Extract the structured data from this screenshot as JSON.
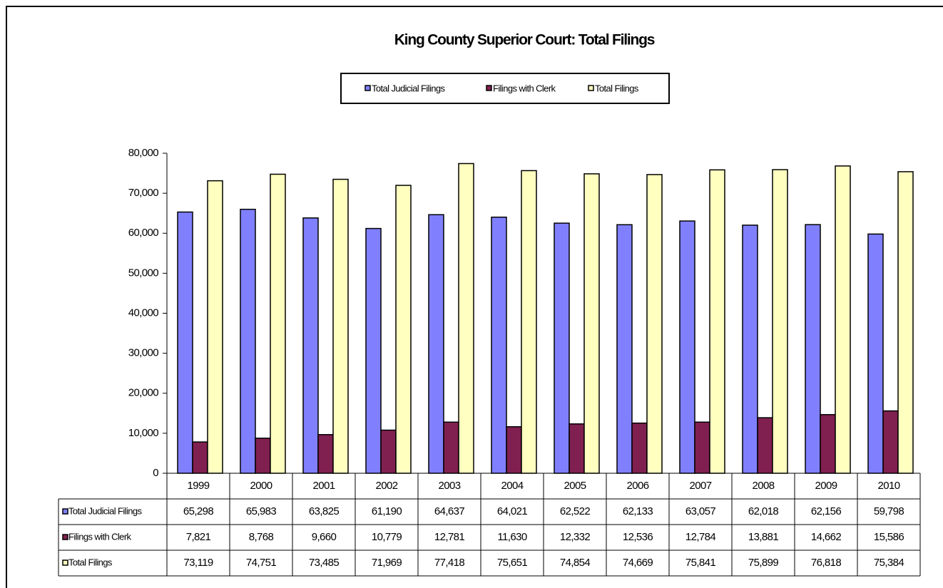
{
  "chart_data": {
    "type": "bar",
    "title": "King County Superior Court: Total Filings",
    "categories": [
      "1999",
      "2000",
      "2001",
      "2002",
      "2003",
      "2004",
      "2005",
      "2006",
      "2007",
      "2008",
      "2009",
      "2010"
    ],
    "series": [
      {
        "name": "Total Judicial Filings",
        "color": "#8080ff",
        "values": [
          65298,
          65983,
          63825,
          61190,
          64637,
          64021,
          62522,
          62133,
          63057,
          62018,
          62156,
          59798
        ],
        "value_labels": [
          "65,298",
          "65,983",
          "63,825",
          "61,190",
          "64,637",
          "64,021",
          "62,522",
          "62,133",
          "63,057",
          "62,018",
          "62,156",
          "59,798"
        ]
      },
      {
        "name": "Filings with Clerk",
        "color": "#802050",
        "values": [
          7821,
          8768,
          9660,
          10779,
          12781,
          11630,
          12332,
          12536,
          12784,
          13881,
          14662,
          15586
        ],
        "value_labels": [
          "7,821",
          "8,768",
          "9,660",
          "10,779",
          "12,781",
          "11,630",
          "12,332",
          "12,536",
          "12,784",
          "13,881",
          "14,662",
          "15,586"
        ]
      },
      {
        "name": "Total Filings",
        "color": "#ffffc0",
        "values": [
          73119,
          74751,
          73485,
          71969,
          77418,
          75651,
          74854,
          74669,
          75841,
          75899,
          76818,
          75384
        ],
        "value_labels": [
          "73,119",
          "74,751",
          "73,485",
          "71,969",
          "77,418",
          "75,651",
          "74,854",
          "74,669",
          "75,841",
          "75,899",
          "76,818",
          "75,384"
        ]
      }
    ],
    "ylim": [
      0,
      80000
    ],
    "yticks": [
      0,
      {
        "value": 10000,
        "label": "10,000"
      },
      {
        "value": 20000,
        "label": "20,000"
      },
      {
        "value": 30000,
        "label": "30,000"
      },
      {
        "value": 40000,
        "label": "40,000"
      },
      {
        "value": 50000,
        "label": "50,000"
      },
      {
        "value": 60000,
        "label": "60,000"
      },
      {
        "value": 70000,
        "label": "70,000"
      },
      {
        "value": 80000,
        "label": "80,000"
      }
    ],
    "grid": false,
    "legend": "top"
  }
}
